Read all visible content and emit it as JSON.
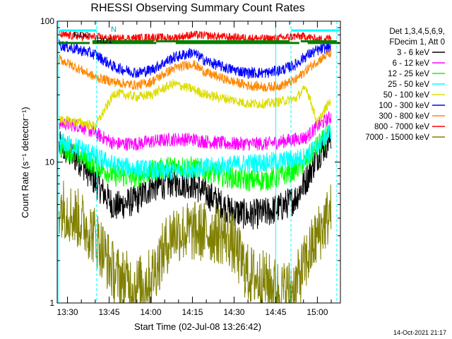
{
  "chart_data": {
    "type": "line",
    "title": "RHESSI Observing Summary Count Rates",
    "xlabel": "Start Time (02-Jul-08 13:26:42)",
    "ylabel": "Count Rate (s⁻¹ detector⁻¹)",
    "yscale": "log",
    "ylim": [
      1,
      100
    ],
    "xlim_minutes": [
      -3.7,
      98.3
    ],
    "x_ticks": [
      {
        "label": "13:30",
        "minutes": 0
      },
      {
        "label": "13:45",
        "minutes": 15
      },
      {
        "label": "14:00",
        "minutes": 30
      },
      {
        "label": "14:15",
        "minutes": 45
      },
      {
        "label": "14:30",
        "minutes": 60
      },
      {
        "label": "14:45",
        "minutes": 75
      },
      {
        "label": "15:00",
        "minutes": 90
      }
    ],
    "y_ticks": [
      {
        "label": "1",
        "value": 1
      },
      {
        "label": "10",
        "value": 10
      },
      {
        "label": "100",
        "value": 100
      }
    ],
    "legend_header": [
      "Det 1,3,4,5,6,9,",
      "FDecim 1, Att 0"
    ],
    "legend_placement": "top-right outside",
    "annotations": {
      "n_label": "N",
      "rd0_label": "RD0",
      "rd1_label": "RD1",
      "timestamp": "14-Oct-2021 21:17"
    },
    "x_minutes": [
      -3,
      5,
      10,
      17,
      25,
      30,
      38,
      45,
      50,
      58,
      65,
      72,
      77,
      82,
      86,
      90,
      95
    ],
    "series": [
      {
        "name": "3 - 6 keV",
        "color": "#000000",
        "values": [
          13,
          10,
          7.2,
          4.8,
          5.4,
          6.6,
          7.2,
          7.0,
          6.0,
          4.6,
          4.2,
          4.4,
          4.8,
          5.5,
          7.5,
          11,
          15
        ]
      },
      {
        "name": "6 - 12 keV",
        "color": "#ff00ff",
        "values": [
          19,
          18,
          16,
          13.5,
          13.5,
          14,
          14.5,
          14.5,
          14,
          13.5,
          13.5,
          13.5,
          14,
          14.5,
          15,
          18,
          21
        ]
      },
      {
        "name": "12 - 25 keV",
        "color": "#00ff00",
        "values": [
          13,
          11,
          9.6,
          8.0,
          7.8,
          8.6,
          9.4,
          9.2,
          8.6,
          7.8,
          7.4,
          7.5,
          8.0,
          8.8,
          10.2,
          13,
          16
        ]
      },
      {
        "name": "25 - 50 keV",
        "color": "#00ffff",
        "values": [
          14,
          12.5,
          11,
          9.5,
          9.0,
          8.8,
          8.5,
          9.0,
          9.2,
          9.5,
          9.8,
          10,
          10.2,
          10.5,
          11,
          13,
          17
        ]
      },
      {
        "name": "50 - 100 keV",
        "color": "#dddd00",
        "values": [
          20,
          19,
          18,
          31,
          29,
          30,
          36,
          33,
          30,
          28,
          26,
          26,
          27,
          28,
          34,
          19,
          28
        ]
      },
      {
        "name": "100 - 300 keV",
        "color": "#0000ff",
        "values": [
          68,
          62,
          58,
          47,
          43,
          45,
          55,
          60,
          52,
          46,
          43,
          43,
          45,
          49,
          57,
          62,
          66
        ]
      },
      {
        "name": "300 - 800 keV",
        "color": "#ff8800",
        "values": [
          54,
          45,
          40,
          37,
          35,
          37,
          46,
          50,
          43,
          38,
          35,
          34,
          35,
          38,
          45,
          52,
          60
        ]
      },
      {
        "name": "800 - 7000 keV",
        "color": "#ff0000",
        "values": [
          80,
          78,
          77,
          75,
          76,
          77,
          76,
          80,
          79,
          77,
          76,
          75,
          76,
          78,
          78,
          74,
          76
        ]
      },
      {
        "name": "7000 - 15000 keV",
        "color": "#808000",
        "values": [
          5.0,
          3.8,
          3.0,
          1.6,
          1.3,
          1.5,
          3.2,
          3.2,
          3.2,
          3.0,
          1.6,
          1.4,
          1.2,
          1.3,
          2.0,
          3.0,
          4.5
        ]
      }
    ],
    "flags": [
      {
        "name": "saa-night-flag",
        "color": "#00ffff",
        "segments": [
          [
            -3,
            10.5
          ],
          [
            80.5,
            98
          ]
        ],
        "y": 86
      },
      {
        "name": "eclipse-flag",
        "color": "#008000",
        "segments": [
          [
            -3,
            8
          ],
          [
            9,
            32
          ],
          [
            39,
            83.5
          ],
          [
            86.5,
            98
          ]
        ],
        "y": 70
      },
      {
        "name": "mode-flag",
        "color": "#008000",
        "segments": [
          [
            9,
            31
          ],
          [
            32,
            45
          ],
          [
            45,
            80
          ],
          [
            84,
            97
          ]
        ],
        "y": 72
      }
    ]
  }
}
